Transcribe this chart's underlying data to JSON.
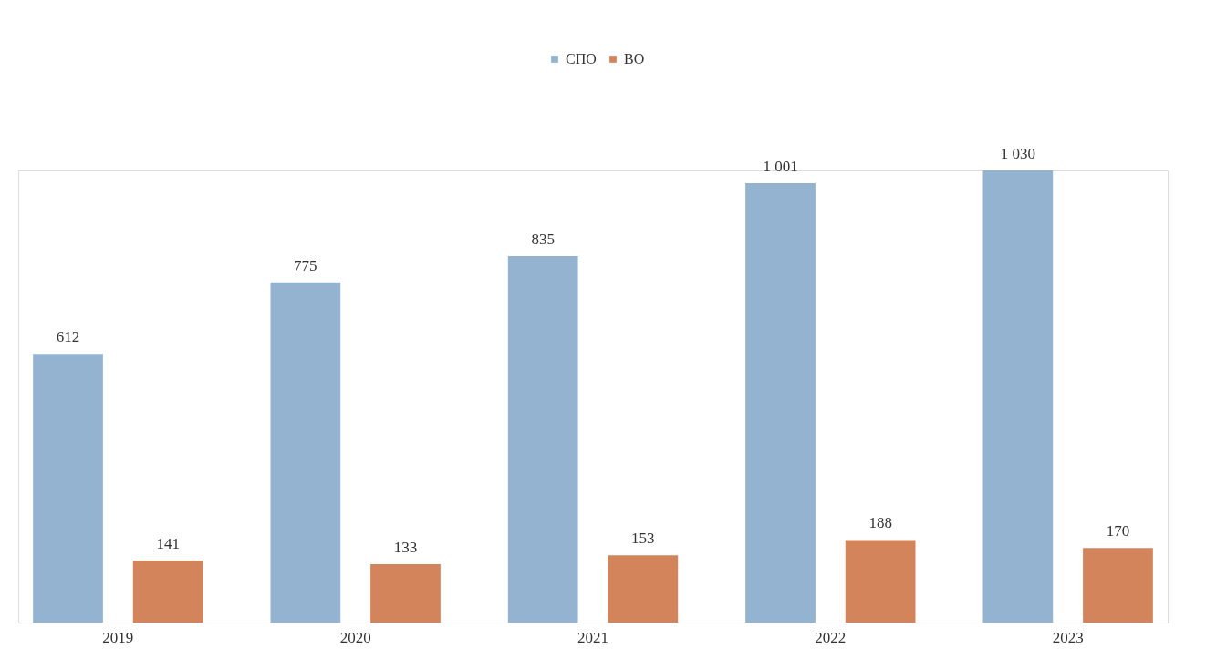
{
  "chart_data": {
    "type": "bar",
    "categories": [
      "2019",
      "2020",
      "2021",
      "2022",
      "2023"
    ],
    "series": [
      {
        "name": "СПО",
        "color": "#94b3d1",
        "values": [
          612,
          775,
          835,
          1001,
          1030
        ],
        "value_labels": [
          "612",
          "775",
          "835",
          "1 001",
          "1 030"
        ]
      },
      {
        "name": "ВО",
        "color": "#d4845a",
        "values": [
          141,
          133,
          153,
          188,
          170
        ],
        "value_labels": [
          "141",
          "133",
          "153",
          "188",
          "170"
        ]
      }
    ],
    "legend": "top"
  }
}
